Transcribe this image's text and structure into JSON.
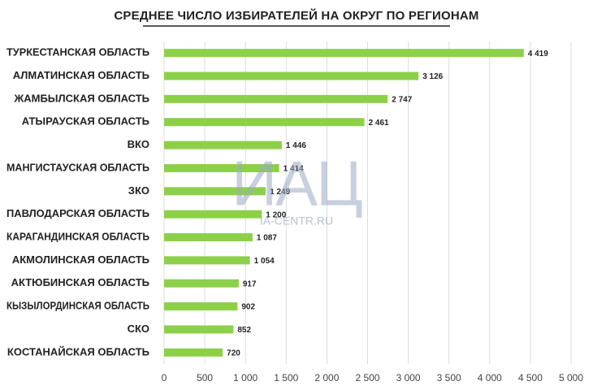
{
  "chart_data": {
    "type": "bar",
    "orientation": "horizontal",
    "title": "СРЕДНЕЕ ЧИСЛО ИЗБИРАТЕЛЕЙ НА ОКРУГ ПО РЕГИОНАМ",
    "watermark": "ИАЦ",
    "watermark_url": "IA-CENTR.RU",
    "categories": [
      "ТУРКЕСТАНСКАЯ ОБЛАСТЬ",
      "АЛМАТИНСКАЯ ОБЛАСТЬ",
      "ЖАМБЫЛСКАЯ ОБЛАСТЬ",
      "АТЫРАУСКАЯ ОБЛАСТЬ",
      "ВКО",
      "МАНГИСТАУСКАЯ ОБЛАСТЬ",
      "ЗКО",
      "ПАВЛОДАРСКАЯ ОБЛАСТЬ",
      "КАРАГАНДИНСКАЯ ОБЛАСТЬ",
      "АКМОЛИНСКАЯ ОБЛАСТЬ",
      "АКТЮБИНСКАЯ ОБЛАСТЬ",
      "КЫЗЫЛОРДИНСКАЯ ОБЛАСТЬ",
      "СКО",
      "КОСТАНАЙСКАЯ ОБЛАСТЬ"
    ],
    "values": [
      4419,
      3126,
      2747,
      2461,
      1446,
      1414,
      1249,
      1200,
      1087,
      1054,
      917,
      902,
      852,
      720
    ],
    "value_labels": [
      "4 419",
      "3 126",
      "2 747",
      "2 461",
      "1 446",
      "1 414",
      "1 249",
      "1 200",
      "1 087",
      "1 054",
      "917",
      "902",
      "852",
      "720"
    ],
    "color": "#8cd04a",
    "xlim": [
      0,
      5000
    ],
    "xticks": [
      0,
      500,
      {
        "value": 1000,
        "label": "1 000"
      },
      {
        "value": 1500,
        "label": "1 500"
      },
      {
        "value": 2000,
        "label": "2 000"
      },
      {
        "value": 2500,
        "label": "2 500"
      },
      {
        "value": 3000,
        "label": "3 000"
      },
      {
        "value": 3500,
        "label": "3 500"
      },
      {
        "value": 4000,
        "label": "4 000"
      },
      {
        "value": 4500,
        "label": "4 500"
      },
      {
        "value": 5000,
        "label": "5 000"
      }
    ],
    "grid": true
  }
}
